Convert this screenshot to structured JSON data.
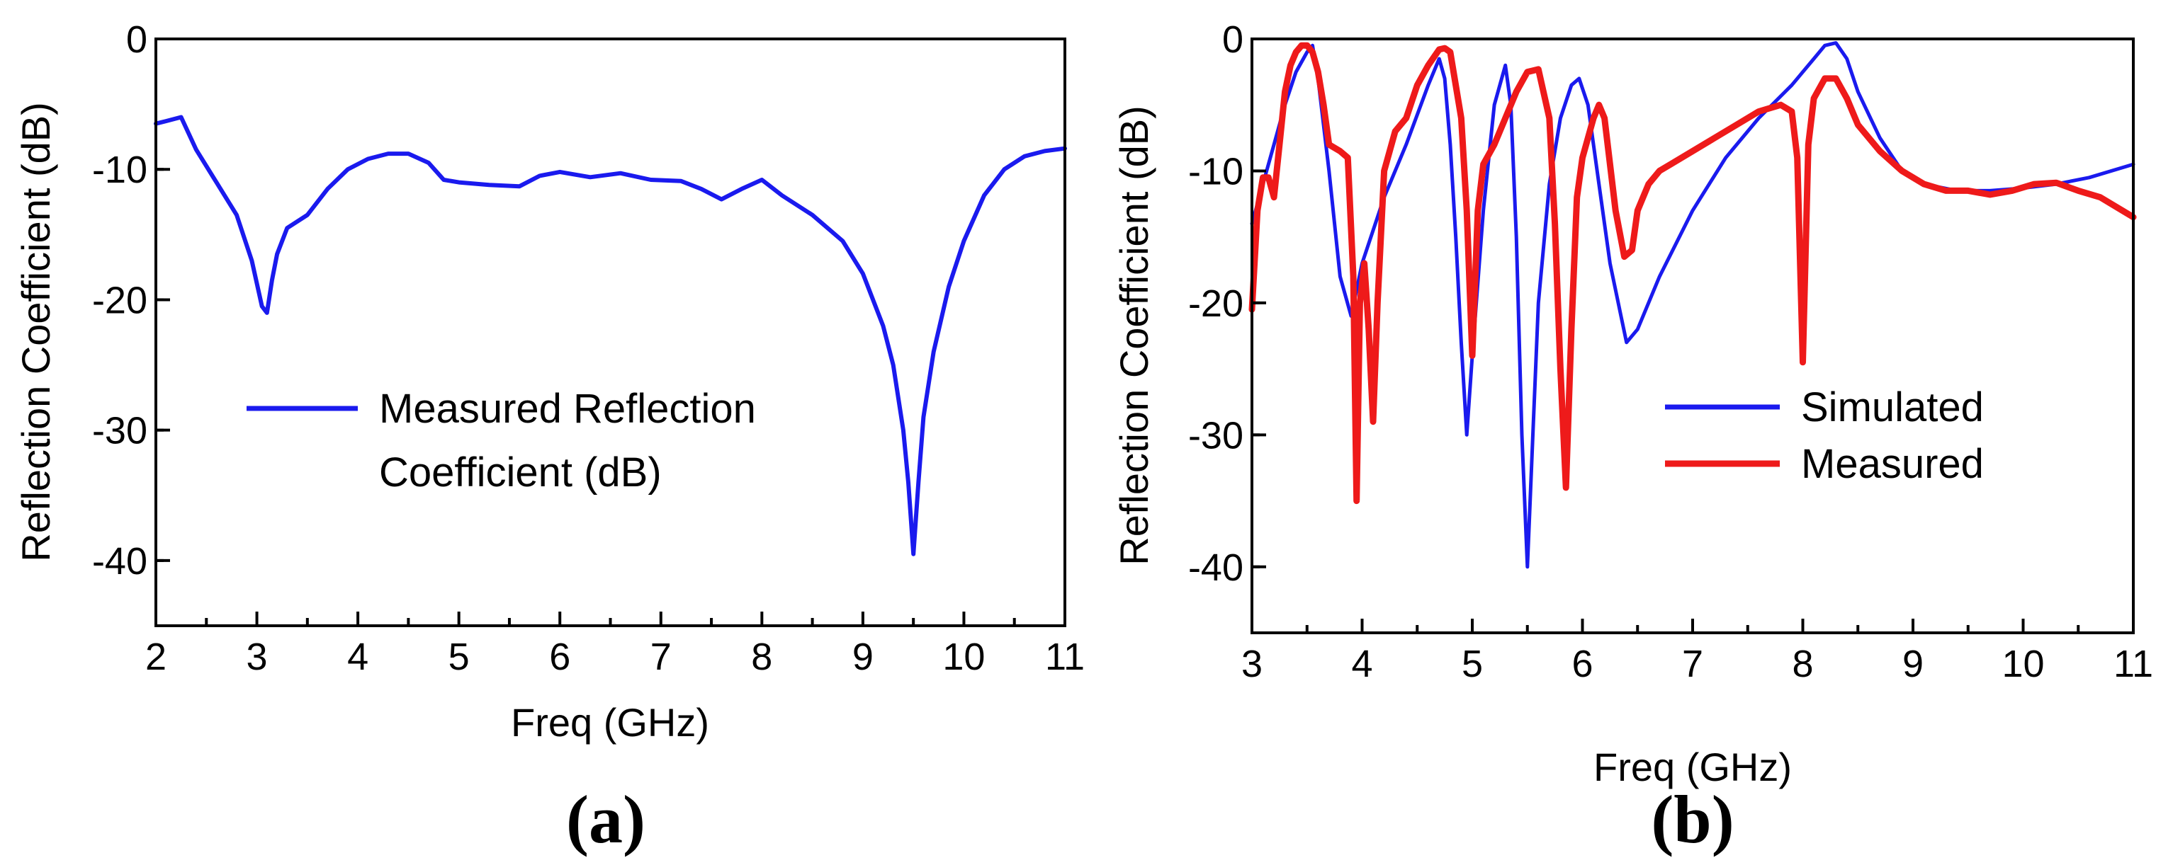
{
  "chart_data": [
    {
      "type": "line",
      "panel_label": "(a)",
      "xlabel": "Freq (GHz)",
      "ylabel": "Reflection Coefficient (dB)",
      "xlim": [
        2,
        11
      ],
      "ylim": [
        -45,
        0
      ],
      "xticks": [
        "2",
        "3",
        "4",
        "5",
        "6",
        "7",
        "8",
        "9",
        "10",
        "11"
      ],
      "yticks": [
        "0",
        "-10",
        "-20",
        "-30",
        "-40"
      ],
      "grid": false,
      "legend": {
        "placement": "center-left",
        "entries": [
          "Measured Reflection",
          "Coefficient (dB)"
        ]
      },
      "series": [
        {
          "name": "Measured Reflection Coefficient (dB)",
          "color": "#1a1aee",
          "x": [
            2.0,
            2.1,
            2.25,
            2.4,
            2.6,
            2.8,
            2.95,
            3.05,
            3.1,
            3.15,
            3.2,
            3.3,
            3.5,
            3.7,
            3.9,
            4.1,
            4.3,
            4.5,
            4.7,
            4.85,
            5.0,
            5.3,
            5.6,
            5.8,
            6.0,
            6.3,
            6.6,
            6.9,
            7.2,
            7.4,
            7.6,
            7.8,
            8.0,
            8.2,
            8.5,
            8.8,
            9.0,
            9.2,
            9.3,
            9.4,
            9.45,
            9.5,
            9.55,
            9.6,
            9.7,
            9.85,
            10.0,
            10.2,
            10.4,
            10.6,
            10.8,
            11.0
          ],
          "y": [
            -6.5,
            -6.3,
            -6.0,
            -8.5,
            -11.0,
            -13.5,
            -17.0,
            -20.5,
            -21.0,
            -18.5,
            -16.5,
            -14.5,
            -13.5,
            -11.5,
            -10.0,
            -9.2,
            -8.8,
            -8.8,
            -9.5,
            -10.8,
            -11.0,
            -11.2,
            -11.3,
            -10.5,
            -10.2,
            -10.6,
            -10.3,
            -10.8,
            -10.9,
            -11.5,
            -12.3,
            -11.5,
            -10.8,
            -12.0,
            -13.5,
            -15.5,
            -18.0,
            -22.0,
            -25.0,
            -30.0,
            -34.0,
            -39.5,
            -34.0,
            -29.0,
            -24.0,
            -19.0,
            -15.5,
            -12.0,
            -10.0,
            -9.0,
            -8.6,
            -8.4
          ]
        }
      ]
    },
    {
      "type": "line",
      "panel_label": "(b)",
      "xlabel": "Freq (GHz)",
      "ylabel": "Reflection Coefficient (dB)",
      "xlim": [
        3,
        11
      ],
      "ylim": [
        -45,
        0
      ],
      "xticks": [
        "3",
        "4",
        "5",
        "6",
        "7",
        "8",
        "9",
        "10",
        "11"
      ],
      "yticks": [
        "0",
        "-10",
        "-20",
        "-30",
        "-40"
      ],
      "grid": false,
      "legend": {
        "placement": "center-right",
        "entries": [
          "Simulated",
          "Measured"
        ]
      },
      "series": [
        {
          "name": "Simulated",
          "color": "#1a1aee",
          "x": [
            3.0,
            3.1,
            3.2,
            3.3,
            3.4,
            3.5,
            3.55,
            3.6,
            3.7,
            3.8,
            3.9,
            4.0,
            4.2,
            4.4,
            4.6,
            4.7,
            4.75,
            4.8,
            4.85,
            4.9,
            4.95,
            5.0,
            5.1,
            5.2,
            5.3,
            5.35,
            5.4,
            5.45,
            5.5,
            5.55,
            5.6,
            5.7,
            5.8,
            5.9,
            5.97,
            6.05,
            6.15,
            6.25,
            6.35,
            6.4,
            6.5,
            6.7,
            7.0,
            7.3,
            7.6,
            7.9,
            8.1,
            8.2,
            8.3,
            8.4,
            8.5,
            8.7,
            8.9,
            9.1,
            9.4,
            9.7,
            10.0,
            10.3,
            10.6,
            11.0
          ],
          "y": [
            -14.0,
            -11.0,
            -8.0,
            -5.0,
            -2.5,
            -1.0,
            -0.5,
            -3.0,
            -10.0,
            -18.0,
            -21.0,
            -17.0,
            -12.0,
            -8.0,
            -3.5,
            -1.5,
            -3.0,
            -8.0,
            -15.0,
            -23.0,
            -30.0,
            -24.0,
            -13.0,
            -5.0,
            -2.0,
            -5.0,
            -15.0,
            -30.0,
            -40.0,
            -30.0,
            -20.0,
            -11.0,
            -6.0,
            -3.5,
            -3.0,
            -5.0,
            -11.0,
            -17.0,
            -21.0,
            -23.0,
            -22.0,
            -18.0,
            -13.0,
            -9.0,
            -6.0,
            -3.5,
            -1.5,
            -0.5,
            -0.3,
            -1.5,
            -4.0,
            -7.5,
            -10.0,
            -11.0,
            -11.5,
            -11.5,
            -11.3,
            -11.0,
            -10.5,
            -9.5
          ]
        },
        {
          "name": "Measured",
          "color": "#ee1a1a",
          "x": [
            3.0,
            3.05,
            3.1,
            3.15,
            3.2,
            3.25,
            3.3,
            3.35,
            3.4,
            3.45,
            3.5,
            3.55,
            3.6,
            3.65,
            3.7,
            3.8,
            3.87,
            3.92,
            3.95,
            3.98,
            4.02,
            4.06,
            4.1,
            4.14,
            4.2,
            4.3,
            4.4,
            4.5,
            4.6,
            4.7,
            4.75,
            4.8,
            4.9,
            4.95,
            5.0,
            5.05,
            5.1,
            5.2,
            5.3,
            5.4,
            5.5,
            5.6,
            5.7,
            5.75,
            5.8,
            5.85,
            5.9,
            5.95,
            6.0,
            6.1,
            6.15,
            6.2,
            6.3,
            6.38,
            6.45,
            6.5,
            6.6,
            6.7,
            6.8,
            7.0,
            7.2,
            7.4,
            7.6,
            7.8,
            7.9,
            7.95,
            8.0,
            8.05,
            8.1,
            8.2,
            8.3,
            8.4,
            8.5,
            8.7,
            8.9,
            9.1,
            9.3,
            9.5,
            9.7,
            9.9,
            10.1,
            10.3,
            10.5,
            10.7,
            10.9,
            11.0
          ],
          "y": [
            -20.5,
            -13.0,
            -10.5,
            -10.5,
            -12.0,
            -8.0,
            -4.0,
            -2.0,
            -1.0,
            -0.5,
            -0.5,
            -1.0,
            -2.5,
            -5.0,
            -8.0,
            -8.5,
            -9.0,
            -18.0,
            -35.0,
            -20.0,
            -17.0,
            -22.0,
            -29.0,
            -20.0,
            -10.0,
            -7.0,
            -6.0,
            -3.5,
            -2.0,
            -0.8,
            -0.7,
            -1.0,
            -6.0,
            -13.0,
            -24.0,
            -13.0,
            -9.5,
            -8.0,
            -6.0,
            -4.0,
            -2.5,
            -2.3,
            -6.0,
            -14.0,
            -25.0,
            -34.0,
            -22.0,
            -12.0,
            -9.0,
            -6.0,
            -5.0,
            -6.0,
            -13.0,
            -16.5,
            -16.0,
            -13.0,
            -11.0,
            -10.0,
            -9.5,
            -8.5,
            -7.5,
            -6.5,
            -5.5,
            -5.0,
            -5.5,
            -9.0,
            -24.5,
            -8.0,
            -4.5,
            -3.0,
            -3.0,
            -4.5,
            -6.5,
            -8.5,
            -10.0,
            -11.0,
            -11.5,
            -11.5,
            -11.8,
            -11.5,
            -11.0,
            -10.9,
            -11.5,
            -12.0,
            -13.0,
            -13.5
          ]
        }
      ]
    }
  ]
}
